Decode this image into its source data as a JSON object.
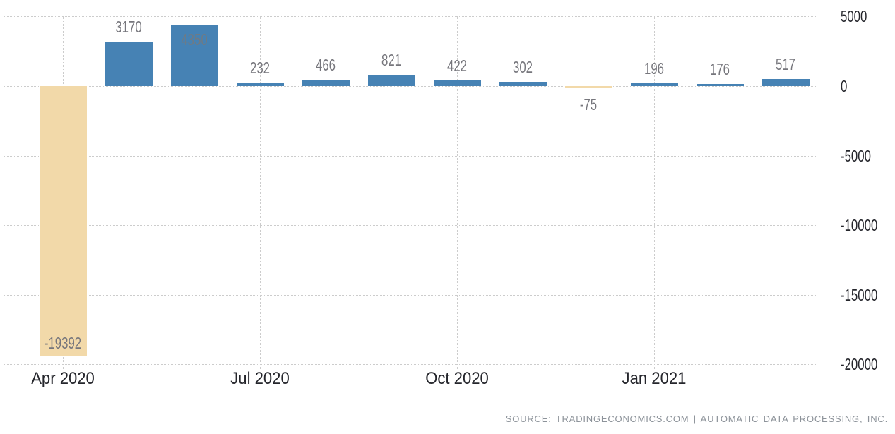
{
  "chart_data": {
    "type": "bar",
    "title": "",
    "xlabel": "",
    "ylabel": "",
    "categories": [
      "Apr 2020",
      "May 2020",
      "Jun 2020",
      "Jul 2020",
      "Aug 2020",
      "Sep 2020",
      "Oct 2020",
      "Nov 2020",
      "Dec 2020",
      "Jan 2021",
      "Feb 2021",
      "Mar 2021"
    ],
    "values": [
      -19392,
      3170,
      4350,
      232,
      466,
      821,
      422,
      302,
      -75,
      196,
      176,
      517
    ],
    "x_tick_labels": [
      "Apr 2020",
      "Jul 2020",
      "Oct 2020",
      "Jan 2021"
    ],
    "x_tick_indices": [
      0,
      3,
      6,
      9
    ],
    "y_ticks": [
      5000,
      0,
      -5000,
      -10000,
      -15000,
      -20000
    ],
    "ylim": [
      -20000,
      6200
    ],
    "grid": true,
    "legend": false,
    "y_axis_side": "right",
    "colors": {
      "positive_bar": "#4682B4",
      "negative_bar": "#F2D9A9",
      "value_label": "#76767c",
      "axis_label": "#25262c",
      "gridline": "#cccccc",
      "source_text": "#8d939a"
    },
    "source": "SOURCE: TRADINGECONOMICS.COM | AUTOMATIC DATA PROCESSING, INC."
  }
}
